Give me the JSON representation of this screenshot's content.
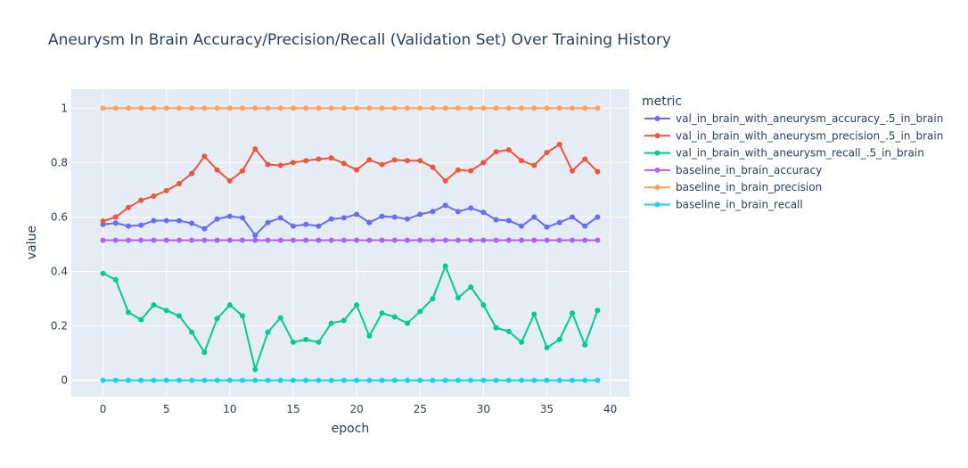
{
  "chart_data": {
    "type": "line",
    "title": "Aneurysm In Brain Accuracy/Precision/Recall (Validation Set) Over Training History",
    "xlabel": "epoch",
    "ylabel": "value",
    "legend_title": "metric",
    "legend_position": "right",
    "xlim": [
      -2.5,
      41.5
    ],
    "ylim": [
      -0.06,
      1.07
    ],
    "xticks": [
      0,
      5,
      10,
      15,
      20,
      25,
      30,
      35,
      40
    ],
    "yticks": [
      0,
      0.2,
      0.4,
      0.6,
      0.8,
      1
    ],
    "ytick_labels": [
      "0",
      "0.2",
      "0.4",
      "0.6",
      "0.8",
      "1"
    ],
    "grid": true,
    "x": [
      0,
      1,
      2,
      3,
      4,
      5,
      6,
      7,
      8,
      9,
      10,
      11,
      12,
      13,
      14,
      15,
      16,
      17,
      18,
      19,
      20,
      21,
      22,
      23,
      24,
      25,
      26,
      27,
      28,
      29,
      30,
      31,
      32,
      33,
      34,
      35,
      36,
      37,
      38,
      39
    ],
    "series": [
      {
        "name": "val_in_brain_with_aneurysm_accuracy_.5_in_brain",
        "color": "#636efa",
        "values": [
          0.573,
          0.578,
          0.567,
          0.57,
          0.587,
          0.587,
          0.587,
          0.577,
          0.557,
          0.593,
          0.603,
          0.597,
          0.533,
          0.58,
          0.597,
          0.567,
          0.573,
          0.567,
          0.593,
          0.597,
          0.61,
          0.58,
          0.603,
          0.6,
          0.593,
          0.61,
          0.62,
          0.643,
          0.62,
          0.633,
          0.617,
          0.59,
          0.587,
          0.567,
          0.6,
          0.563,
          0.58,
          0.6,
          0.567,
          0.6
        ]
      },
      {
        "name": "val_in_brain_with_aneurysm_precision_.5_in_brain",
        "color": "#ef553b",
        "values": [
          0.585,
          0.6,
          0.635,
          0.662,
          0.677,
          0.697,
          0.723,
          0.76,
          0.823,
          0.773,
          0.733,
          0.77,
          0.85,
          0.793,
          0.79,
          0.8,
          0.807,
          0.813,
          0.817,
          0.797,
          0.773,
          0.81,
          0.793,
          0.81,
          0.807,
          0.807,
          0.783,
          0.733,
          0.773,
          0.77,
          0.8,
          0.84,
          0.847,
          0.807,
          0.79,
          0.837,
          0.867,
          0.77,
          0.813,
          0.767
        ]
      },
      {
        "name": "val_in_brain_with_aneurysm_recall_.5_in_brain",
        "color": "#00cc96",
        "values": [
          0.393,
          0.37,
          0.25,
          0.223,
          0.277,
          0.257,
          0.237,
          0.177,
          0.103,
          0.227,
          0.277,
          0.237,
          0.04,
          0.177,
          0.23,
          0.14,
          0.15,
          0.14,
          0.21,
          0.22,
          0.277,
          0.163,
          0.247,
          0.233,
          0.21,
          0.253,
          0.3,
          0.42,
          0.303,
          0.343,
          0.277,
          0.193,
          0.18,
          0.14,
          0.243,
          0.12,
          0.15,
          0.247,
          0.13,
          0.257
        ]
      },
      {
        "name": "baseline_in_brain_accuracy",
        "color": "#ab63fa",
        "values": [
          0.515,
          0.515,
          0.515,
          0.515,
          0.515,
          0.515,
          0.515,
          0.515,
          0.515,
          0.515,
          0.515,
          0.515,
          0.515,
          0.515,
          0.515,
          0.515,
          0.515,
          0.515,
          0.515,
          0.515,
          0.515,
          0.515,
          0.515,
          0.515,
          0.515,
          0.515,
          0.515,
          0.515,
          0.515,
          0.515,
          0.515,
          0.515,
          0.515,
          0.515,
          0.515,
          0.515,
          0.515,
          0.515,
          0.515,
          0.515
        ]
      },
      {
        "name": "baseline_in_brain_precision",
        "color": "#ffa15a",
        "values": [
          1,
          1,
          1,
          1,
          1,
          1,
          1,
          1,
          1,
          1,
          1,
          1,
          1,
          1,
          1,
          1,
          1,
          1,
          1,
          1,
          1,
          1,
          1,
          1,
          1,
          1,
          1,
          1,
          1,
          1,
          1,
          1,
          1,
          1,
          1,
          1,
          1,
          1,
          1,
          1
        ]
      },
      {
        "name": "baseline_in_brain_recall",
        "color": "#19d3f3",
        "values": [
          0,
          0,
          0,
          0,
          0,
          0,
          0,
          0,
          0,
          0,
          0,
          0,
          0,
          0,
          0,
          0,
          0,
          0,
          0,
          0,
          0,
          0,
          0,
          0,
          0,
          0,
          0,
          0,
          0,
          0,
          0,
          0,
          0,
          0,
          0,
          0,
          0,
          0,
          0,
          0
        ]
      }
    ]
  }
}
